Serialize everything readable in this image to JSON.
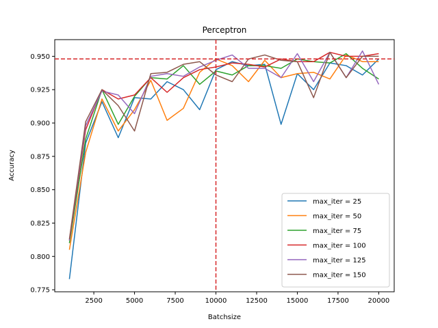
{
  "chart_data": {
    "type": "line",
    "title": "Perceptron",
    "xlabel": "Batchsize",
    "ylabel": "Accuracy",
    "xlim": [
      100,
      20950
    ],
    "ylim": [
      0.7735,
      0.9625
    ],
    "x_ticks": [
      2500,
      5000,
      7500,
      10000,
      12500,
      15000,
      17500,
      20000
    ],
    "x_tick_labels": [
      "2500",
      "5000",
      "7500",
      "10000",
      "12500",
      "15000",
      "17500",
      "20000"
    ],
    "y_ticks": [
      0.775,
      0.8,
      0.825,
      0.85,
      0.875,
      0.9,
      0.925,
      0.95
    ],
    "y_tick_labels": [
      "0.775",
      "0.800",
      "0.825",
      "0.850",
      "0.875",
      "0.900",
      "0.925",
      "0.950"
    ],
    "grid": false,
    "legend_position": "lower right",
    "reference_lines": {
      "hline_y": 0.948,
      "vline_x": 10000,
      "color": "#d62728",
      "style": "dashed"
    },
    "x": [
      1000,
      2000,
      3000,
      4000,
      5000,
      6000,
      7000,
      8000,
      9000,
      10000,
      11000,
      12000,
      13000,
      14000,
      15000,
      16000,
      17000,
      18000,
      19000,
      20000
    ],
    "series": [
      {
        "name": "max_iter = 25",
        "color": "#1f77b4",
        "values": [
          0.783,
          0.885,
          0.916,
          0.889,
          0.919,
          0.918,
          0.931,
          0.925,
          0.91,
          0.94,
          0.946,
          0.943,
          0.944,
          0.899,
          0.937,
          0.925,
          0.945,
          0.943,
          0.936,
          0.948
        ]
      },
      {
        "name": "max_iter = 50",
        "color": "#ff7f0e",
        "values": [
          0.805,
          0.878,
          0.918,
          0.894,
          0.91,
          0.932,
          0.902,
          0.911,
          0.938,
          0.948,
          0.943,
          0.931,
          0.947,
          0.934,
          0.937,
          0.938,
          0.933,
          0.951,
          0.946,
          0.946
        ]
      },
      {
        "name": "max_iter = 75",
        "color": "#2ca02c",
        "values": [
          0.81,
          0.888,
          0.925,
          0.899,
          0.92,
          0.934,
          0.933,
          0.943,
          0.929,
          0.939,
          0.936,
          0.943,
          0.943,
          0.941,
          0.948,
          0.946,
          0.945,
          0.952,
          0.941,
          0.933
        ]
      },
      {
        "name": "max_iter = 100",
        "color": "#d62728",
        "values": [
          0.812,
          0.895,
          0.925,
          0.918,
          0.921,
          0.934,
          0.923,
          0.934,
          0.94,
          0.942,
          0.945,
          0.944,
          0.942,
          0.948,
          0.946,
          0.946,
          0.953,
          0.95,
          0.95,
          0.952
        ]
      },
      {
        "name": "max_iter = 125",
        "color": "#9467bd",
        "values": [
          0.812,
          0.898,
          0.924,
          0.921,
          0.907,
          0.935,
          0.937,
          0.935,
          0.942,
          0.947,
          0.951,
          0.941,
          0.941,
          0.934,
          0.952,
          0.931,
          0.953,
          0.934,
          0.954,
          0.929
        ]
      },
      {
        "name": "max_iter = 150",
        "color": "#8c564b",
        "values": [
          0.813,
          0.901,
          0.925,
          0.913,
          0.894,
          0.937,
          0.938,
          0.944,
          0.946,
          0.936,
          0.931,
          0.948,
          0.951,
          0.947,
          0.946,
          0.919,
          0.953,
          0.934,
          0.95,
          0.95
        ]
      }
    ]
  }
}
